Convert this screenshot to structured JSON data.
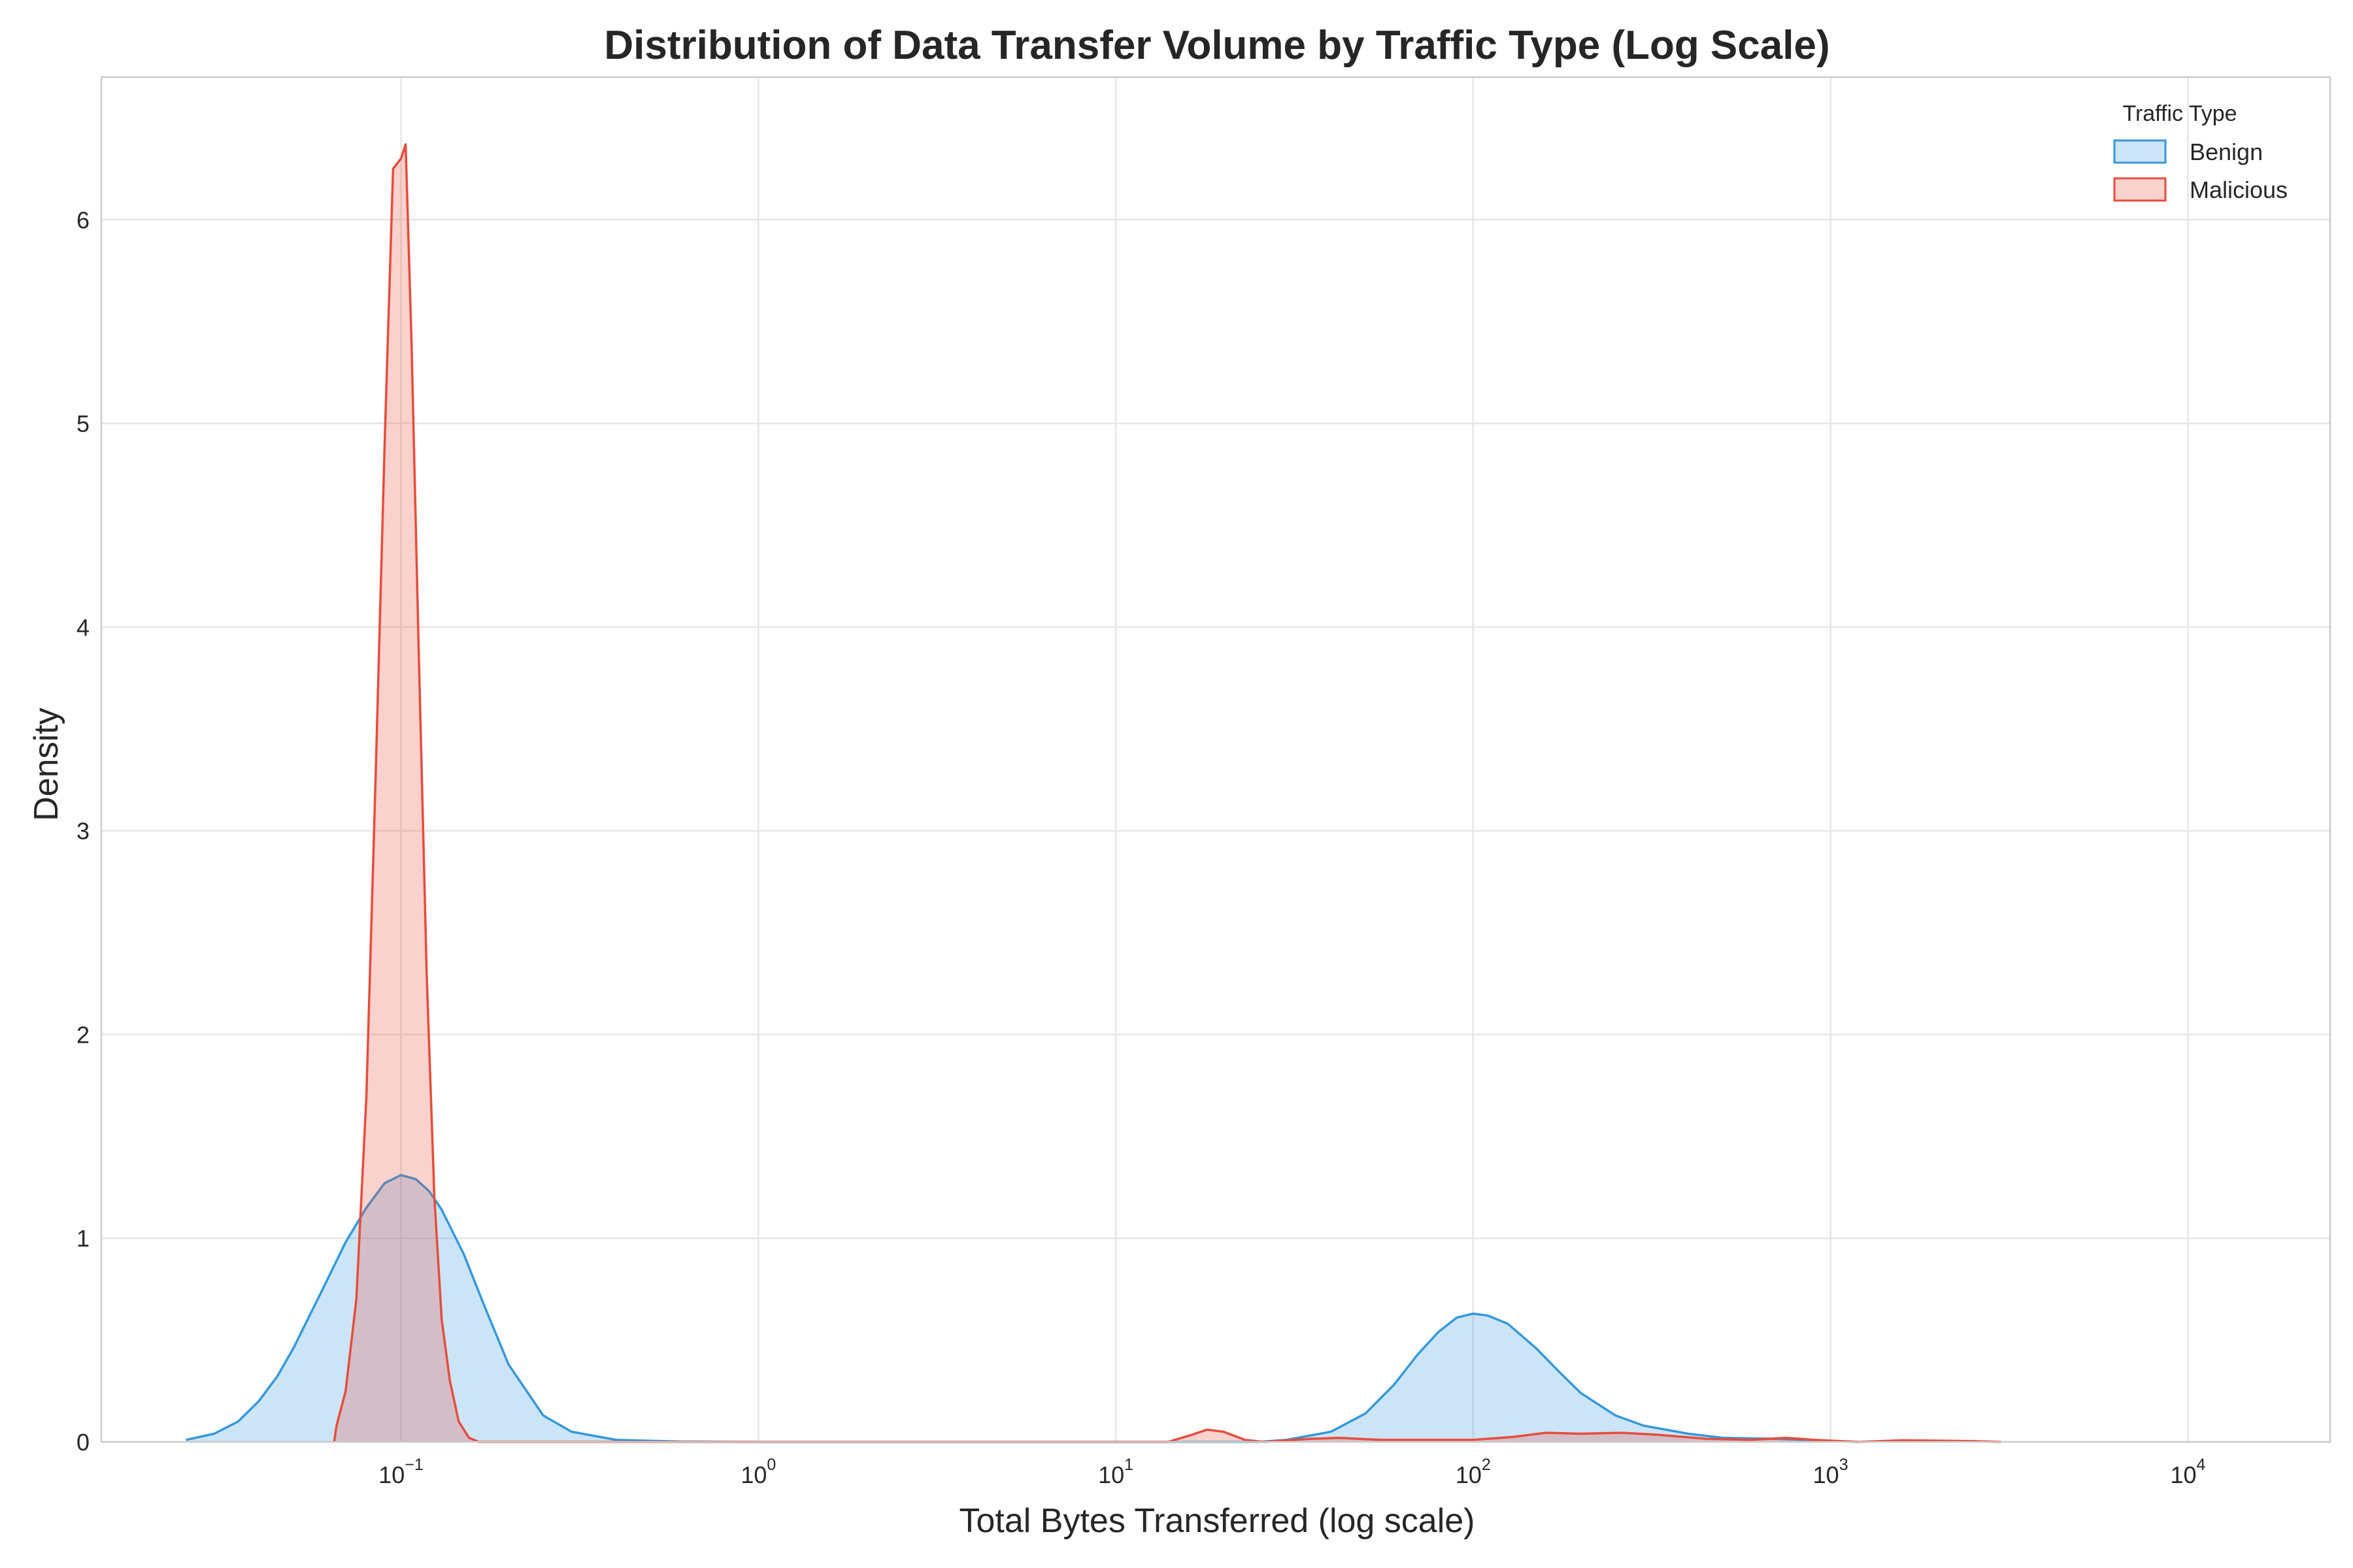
{
  "chart_data": {
    "type": "area",
    "title": "Distribution of Data Transfer Volume by Traffic Type (Log Scale)",
    "xlabel": "Total Bytes Transferred (log scale)",
    "ylabel": "Density",
    "xscale": "log",
    "xlim": [
      0.0145,
      25000
    ],
    "ylim": [
      0,
      6.7
    ],
    "x_ticks": [
      {
        "base": "10",
        "exp": "−1",
        "value": 0.1
      },
      {
        "base": "10",
        "exp": "0",
        "value": 1
      },
      {
        "base": "10",
        "exp": "1",
        "value": 10
      },
      {
        "base": "10",
        "exp": "2",
        "value": 100
      },
      {
        "base": "10",
        "exp": "3",
        "value": 1000
      },
      {
        "base": "10",
        "exp": "4",
        "value": 10000
      }
    ],
    "y_ticks": [
      0,
      1,
      2,
      3,
      4,
      5,
      6
    ],
    "grid": true,
    "legend": {
      "title": "Traffic Type",
      "placement": "top-right"
    },
    "series": [
      {
        "name": "Benign",
        "color": "#3498db",
        "points": [
          [
            0.025,
            0.01
          ],
          [
            0.03,
            0.04
          ],
          [
            0.035,
            0.1
          ],
          [
            0.04,
            0.2
          ],
          [
            0.045,
            0.32
          ],
          [
            0.05,
            0.46
          ],
          [
            0.06,
            0.74
          ],
          [
            0.07,
            0.98
          ],
          [
            0.08,
            1.15
          ],
          [
            0.09,
            1.27
          ],
          [
            0.1,
            1.31
          ],
          [
            0.11,
            1.29
          ],
          [
            0.12,
            1.23
          ],
          [
            0.13,
            1.14
          ],
          [
            0.15,
            0.92
          ],
          [
            0.17,
            0.68
          ],
          [
            0.2,
            0.38
          ],
          [
            0.25,
            0.13
          ],
          [
            0.3,
            0.05
          ],
          [
            0.4,
            0.01
          ],
          [
            0.6,
            0.002
          ],
          [
            1.0,
            0.0
          ],
          [
            10,
            0.0
          ],
          [
            25,
            0.0
          ],
          [
            30,
            0.01
          ],
          [
            40,
            0.05
          ],
          [
            50,
            0.14
          ],
          [
            60,
            0.28
          ],
          [
            70,
            0.43
          ],
          [
            80,
            0.54
          ],
          [
            90,
            0.61
          ],
          [
            100,
            0.63
          ],
          [
            110,
            0.62
          ],
          [
            125,
            0.58
          ],
          [
            150,
            0.46
          ],
          [
            175,
            0.34
          ],
          [
            200,
            0.24
          ],
          [
            250,
            0.13
          ],
          [
            300,
            0.08
          ],
          [
            400,
            0.04
          ],
          [
            500,
            0.02
          ],
          [
            700,
            0.015
          ],
          [
            1000,
            0.005
          ],
          [
            1200,
            0.0
          ]
        ]
      },
      {
        "name": "Malicious",
        "color": "#e74c3c",
        "points": [
          [
            0.065,
            0.0
          ],
          [
            0.066,
            0.08
          ],
          [
            0.07,
            0.25
          ],
          [
            0.075,
            0.7
          ],
          [
            0.08,
            1.7
          ],
          [
            0.085,
            3.3
          ],
          [
            0.09,
            4.9
          ],
          [
            0.095,
            6.25
          ],
          [
            0.1,
            6.3
          ],
          [
            0.103,
            6.37
          ],
          [
            0.107,
            5.4
          ],
          [
            0.112,
            3.9
          ],
          [
            0.118,
            2.3
          ],
          [
            0.124,
            1.2
          ],
          [
            0.13,
            0.6
          ],
          [
            0.137,
            0.3
          ],
          [
            0.145,
            0.1
          ],
          [
            0.155,
            0.02
          ],
          [
            0.165,
            0.0
          ],
          [
            14,
            0.0
          ],
          [
            16,
            0.03
          ],
          [
            18,
            0.06
          ],
          [
            20,
            0.05
          ],
          [
            23,
            0.01
          ],
          [
            26,
            0.0
          ],
          [
            35,
            0.015
          ],
          [
            42,
            0.02
          ],
          [
            55,
            0.01
          ],
          [
            100,
            0.01
          ],
          [
            130,
            0.025
          ],
          [
            160,
            0.045
          ],
          [
            200,
            0.04
          ],
          [
            260,
            0.045
          ],
          [
            330,
            0.035
          ],
          [
            450,
            0.015
          ],
          [
            600,
            0.01
          ],
          [
            750,
            0.02
          ],
          [
            900,
            0.01
          ],
          [
            1200,
            0.0
          ],
          [
            1600,
            0.008
          ],
          [
            2500,
            0.004
          ],
          [
            3000,
            0.0
          ]
        ]
      }
    ]
  }
}
